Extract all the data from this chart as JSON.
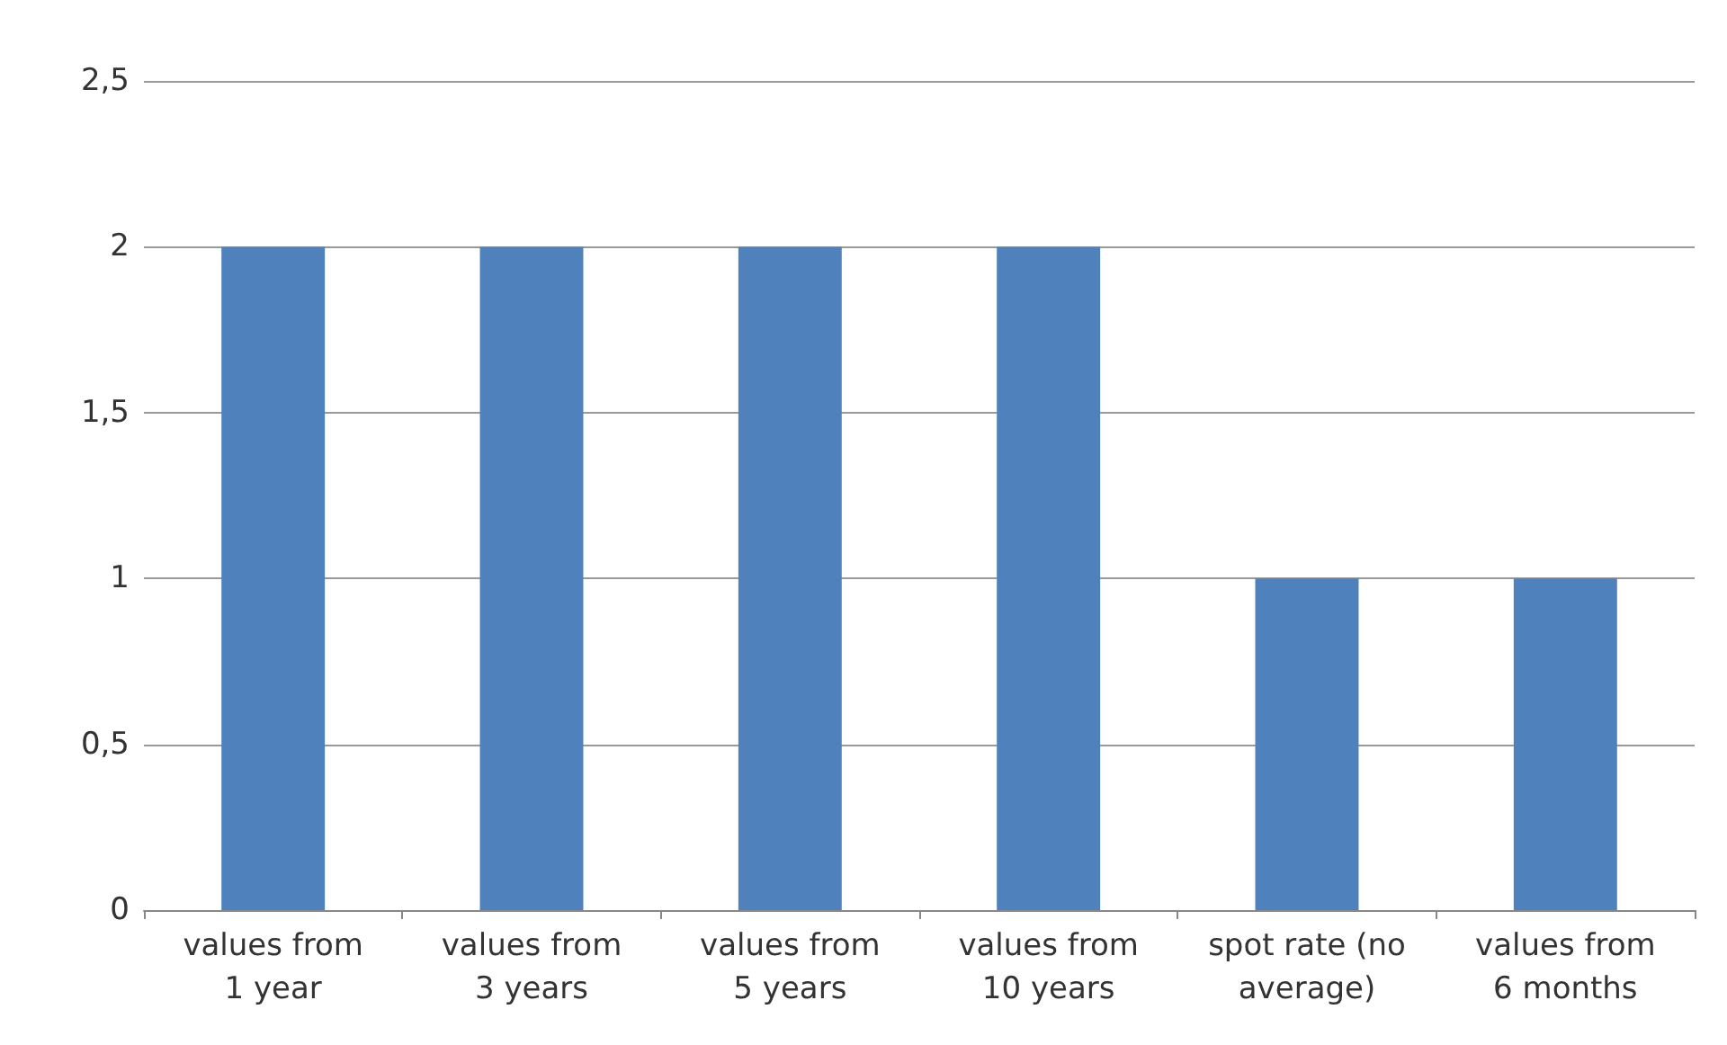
{
  "chart_data": {
    "type": "bar",
    "categories": [
      "values from\n1 year",
      "values from\n3 years",
      "values from\n5 years",
      "values from\n10 years",
      "spot rate (no\naverage)",
      "values from\n6 months"
    ],
    "values": [
      2,
      2,
      2,
      2,
      1,
      1
    ],
    "color": "#4f81bd",
    "ylim": [
      0,
      2.5
    ],
    "yticks": [
      {
        "value": 0,
        "label": "0"
      },
      {
        "value": 0.5,
        "label": "0,5"
      },
      {
        "value": 1,
        "label": "1"
      },
      {
        "value": 1.5,
        "label": "1,5"
      },
      {
        "value": 2,
        "label": "2"
      },
      {
        "value": 2.5,
        "label": "2,5"
      }
    ],
    "grid": "y"
  }
}
